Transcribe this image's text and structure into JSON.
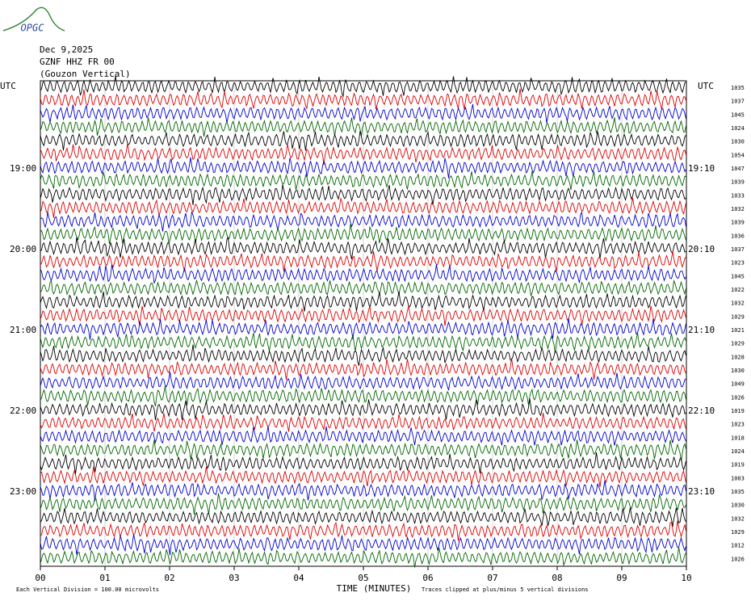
{
  "logo": "OPGC",
  "header": {
    "date": "Dec 9,2025",
    "station": "GZNF HHZ FR 00",
    "component": "(Gouzon Vertical)"
  },
  "left_axis": {
    "title": "UTC",
    "labels": [
      "19:00",
      "20:00",
      "21:00",
      "22:00",
      "23:00"
    ]
  },
  "right_axis": {
    "title": "UTC",
    "labels": [
      "19:10",
      "20:10",
      "21:10",
      "22:10",
      "23:10"
    ]
  },
  "trace_levels": [
    "1035",
    "1037",
    "1045",
    "1024",
    "1030",
    "1054",
    "1047",
    "1039",
    "1033",
    "1032",
    "1039",
    "1036",
    "1037",
    "1023",
    "1045",
    "1022",
    "1032",
    "1029",
    "1021",
    "1029",
    "1028",
    "1030",
    "1049",
    "1026",
    "1019",
    "1023",
    "1018",
    "1024",
    "1019",
    "1003",
    "1035",
    "1030",
    "1032",
    "1029",
    "1012",
    "1026"
  ],
  "x_axis": {
    "title": "TIME (MINUTES)",
    "ticks": [
      "00",
      "01",
      "02",
      "03",
      "04",
      "05",
      "06",
      "07",
      "08",
      "09",
      "10"
    ]
  },
  "footer": {
    "scale": "Each Vertical Division =  100.00 microvolts",
    "clip": "Traces clipped at plus/minus 5 vertical divisions"
  }
}
